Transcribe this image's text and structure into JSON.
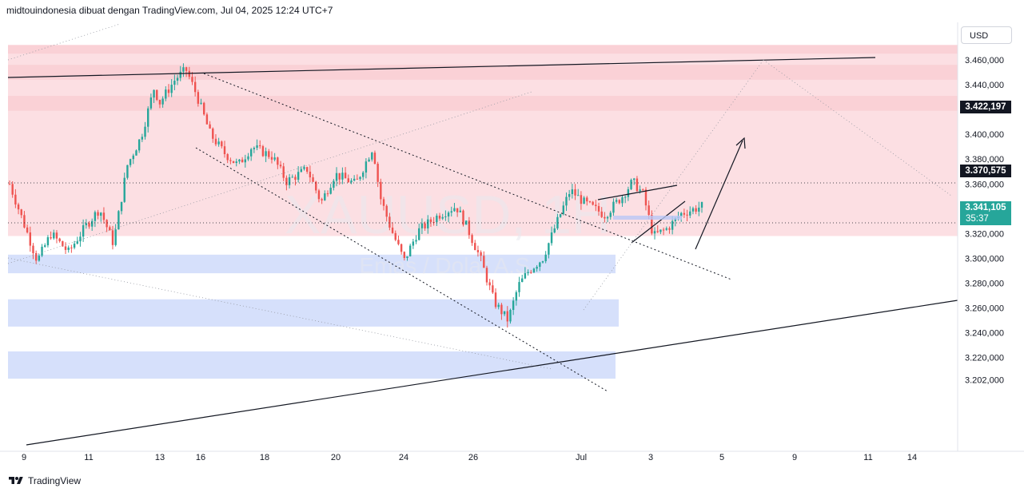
{
  "header": {
    "caption": "midtouindonesia dibuat dengan TradingView.com, Jul 04, 2025 12:24 UTC+7"
  },
  "watermark": {
    "symbol": "XAUUSD, 1H",
    "description": "Emas / Dolar A.S."
  },
  "price_axis": {
    "currency": "USD",
    "tick_labels": [
      "3.460,000",
      "3.440,000",
      "3.400,000",
      "3.380,000",
      "3.360,000",
      "3.320,000",
      "3.300,000",
      "3.280,000",
      "3.260,000",
      "3.240,000",
      "3.220,000",
      "3.202,000"
    ],
    "tags": [
      {
        "label": "3.422,197",
        "price": 3422.197,
        "color": "#131722"
      },
      {
        "label": "3.370,575",
        "price": 3370.575,
        "color": "#131722"
      },
      {
        "label": "3.341,105",
        "sublabel": "35:37",
        "price": 3341.105,
        "color": "#26a69a"
      }
    ]
  },
  "time_axis": {
    "tick_labels": [
      "9",
      "11",
      "13",
      "16",
      "18",
      "20",
      "24",
      "26",
      "Jul",
      "3",
      "5",
      "9",
      "11",
      "14"
    ]
  },
  "footer": {
    "brand": "TradingView"
  },
  "colors": {
    "up": "#26a69a",
    "down": "#ef5350",
    "supply_zone": "#fcdfe3",
    "supply_band": "#fad1d6",
    "demand_zone": "#d6e0fb",
    "line": "#131722"
  },
  "chart_data": {
    "type": "candlestick",
    "symbol": "XAUUSD, 1H",
    "ylim": [
      3195,
      3475
    ],
    "zones": [
      {
        "kind": "supply",
        "from": 3318,
        "to": 3472
      },
      {
        "kind": "supply-band",
        "from": 3465,
        "to": 3472
      },
      {
        "kind": "supply-band",
        "from": 3444,
        "to": 3456
      },
      {
        "kind": "supply-band",
        "from": 3419,
        "to": 3431
      },
      {
        "kind": "demand",
        "from": 3288,
        "to": 3303
      },
      {
        "kind": "demand",
        "from": 3245,
        "to": 3267
      },
      {
        "kind": "demand",
        "from": 3203,
        "to": 3225
      }
    ],
    "price_path": [
      [
        0,
        3360
      ],
      [
        0.04,
        3298
      ],
      [
        0.06,
        3320
      ],
      [
        0.085,
        3305
      ],
      [
        0.11,
        3326
      ],
      [
        0.13,
        3340
      ],
      [
        0.15,
        3312
      ],
      [
        0.17,
        3375
      ],
      [
        0.19,
        3398
      ],
      [
        0.21,
        3440
      ],
      [
        0.215,
        3424
      ],
      [
        0.24,
        3445
      ],
      [
        0.255,
        3452
      ],
      [
        0.27,
        3432
      ],
      [
        0.29,
        3400
      ],
      [
        0.31,
        3385
      ],
      [
        0.33,
        3375
      ],
      [
        0.35,
        3390
      ],
      [
        0.38,
        3382
      ],
      [
        0.4,
        3362
      ],
      [
        0.43,
        3372
      ],
      [
        0.45,
        3345
      ],
      [
        0.47,
        3368
      ],
      [
        0.5,
        3360
      ],
      [
        0.525,
        3390
      ],
      [
        0.535,
        3350
      ],
      [
        0.55,
        3325
      ],
      [
        0.57,
        3298
      ],
      [
        0.59,
        3322
      ],
      [
        0.62,
        3335
      ],
      [
        0.645,
        3342
      ],
      [
        0.66,
        3326
      ],
      [
        0.68,
        3300
      ],
      [
        0.7,
        3265
      ],
      [
        0.72,
        3250
      ],
      [
        0.735,
        3278
      ],
      [
        0.75,
        3290
      ],
      [
        0.77,
        3300
      ],
      [
        0.79,
        3328
      ],
      [
        0.81,
        3355
      ],
      [
        0.83,
        3345
      ],
      [
        0.86,
        3335
      ],
      [
        0.885,
        3350
      ],
      [
        0.9,
        3362
      ],
      [
        0.915,
        3352
      ],
      [
        0.93,
        3318
      ],
      [
        0.95,
        3324
      ],
      [
        0.97,
        3336
      ],
      [
        1.0,
        3342
      ]
    ]
  }
}
